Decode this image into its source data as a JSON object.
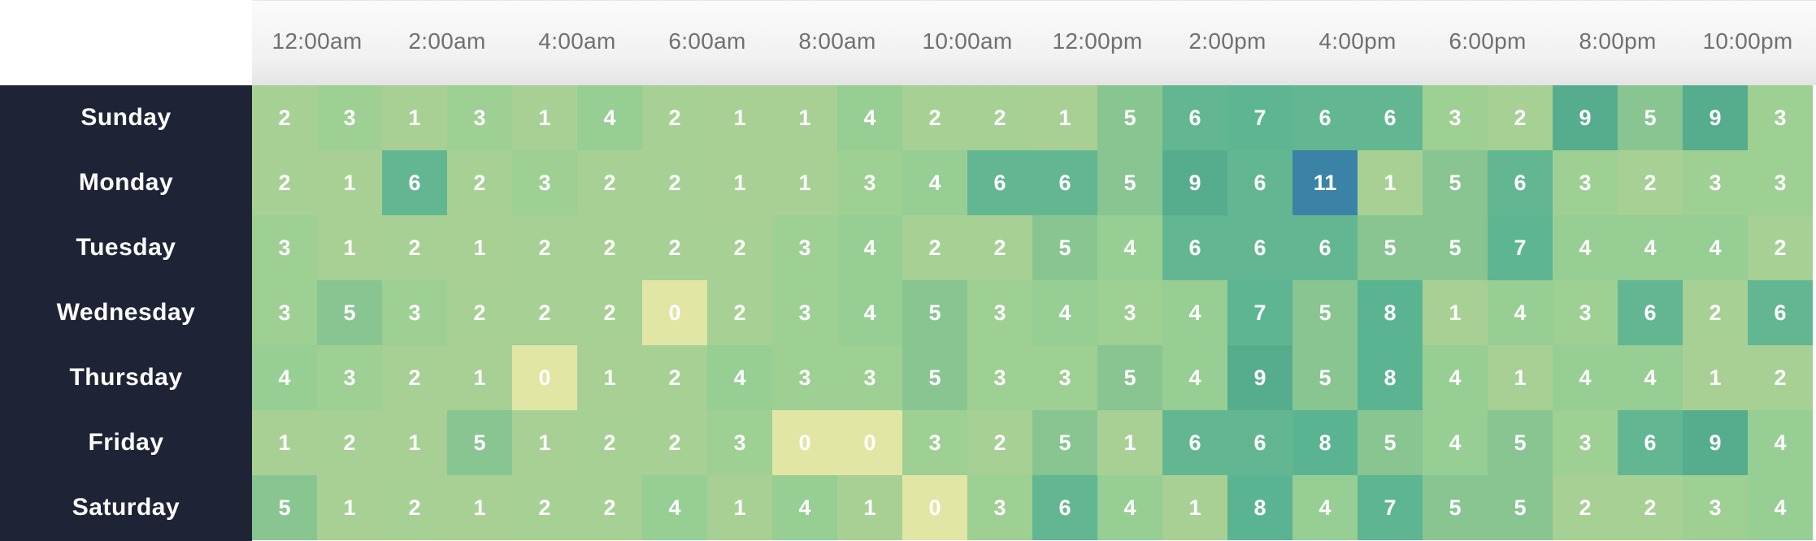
{
  "chart_data": {
    "type": "heatmap",
    "title": "",
    "xlabel": "",
    "ylabel": "",
    "x_tick_labels": [
      "12:00am",
      "2:00am",
      "4:00am",
      "6:00am",
      "8:00am",
      "10:00am",
      "12:00pm",
      "2:00pm",
      "4:00pm",
      "6:00pm",
      "8:00pm",
      "10:00pm"
    ],
    "rows": [
      "Sunday",
      "Monday",
      "Tuesday",
      "Wednesday",
      "Thursday",
      "Friday",
      "Saturday"
    ],
    "values": [
      [
        2,
        3,
        1,
        3,
        1,
        4,
        2,
        1,
        1,
        4,
        2,
        2,
        1,
        5,
        6,
        7,
        6,
        6,
        3,
        2,
        9,
        5,
        9,
        3
      ],
      [
        2,
        1,
        6,
        2,
        3,
        2,
        2,
        1,
        1,
        3,
        4,
        6,
        6,
        5,
        9,
        6,
        11,
        1,
        5,
        6,
        3,
        2,
        3,
        3
      ],
      [
        3,
        1,
        2,
        1,
        2,
        2,
        2,
        2,
        3,
        4,
        2,
        2,
        5,
        4,
        6,
        6,
        6,
        5,
        5,
        7,
        4,
        4,
        4,
        2
      ],
      [
        3,
        5,
        3,
        2,
        2,
        2,
        0,
        2,
        3,
        4,
        5,
        3,
        4,
        3,
        4,
        7,
        5,
        8,
        1,
        4,
        3,
        6,
        2,
        6
      ],
      [
        4,
        3,
        2,
        1,
        0,
        1,
        2,
        4,
        3,
        3,
        5,
        3,
        3,
        5,
        4,
        9,
        5,
        8,
        4,
        1,
        4,
        4,
        1,
        2
      ],
      [
        1,
        2,
        1,
        5,
        1,
        2,
        2,
        3,
        0,
        0,
        3,
        2,
        5,
        1,
        6,
        6,
        8,
        5,
        4,
        5,
        3,
        6,
        9,
        4
      ],
      [
        5,
        1,
        2,
        1,
        2,
        2,
        4,
        1,
        4,
        1,
        0,
        3,
        6,
        4,
        1,
        8,
        4,
        7,
        5,
        5,
        2,
        2,
        3,
        4
      ]
    ],
    "colors": {
      "zero": "#e2e6a5",
      "one": "#a8d095",
      "two": "#a6d094",
      "three": "#9ecf93",
      "four": "#96ce93",
      "five": "#88c591",
      "six": "#62b792",
      "seven": "#5db592",
      "eight": "#5ab492",
      "nine": "#55ad8e",
      "max": "#3b82a7",
      "day_column_bg": "#1e2336"
    }
  }
}
